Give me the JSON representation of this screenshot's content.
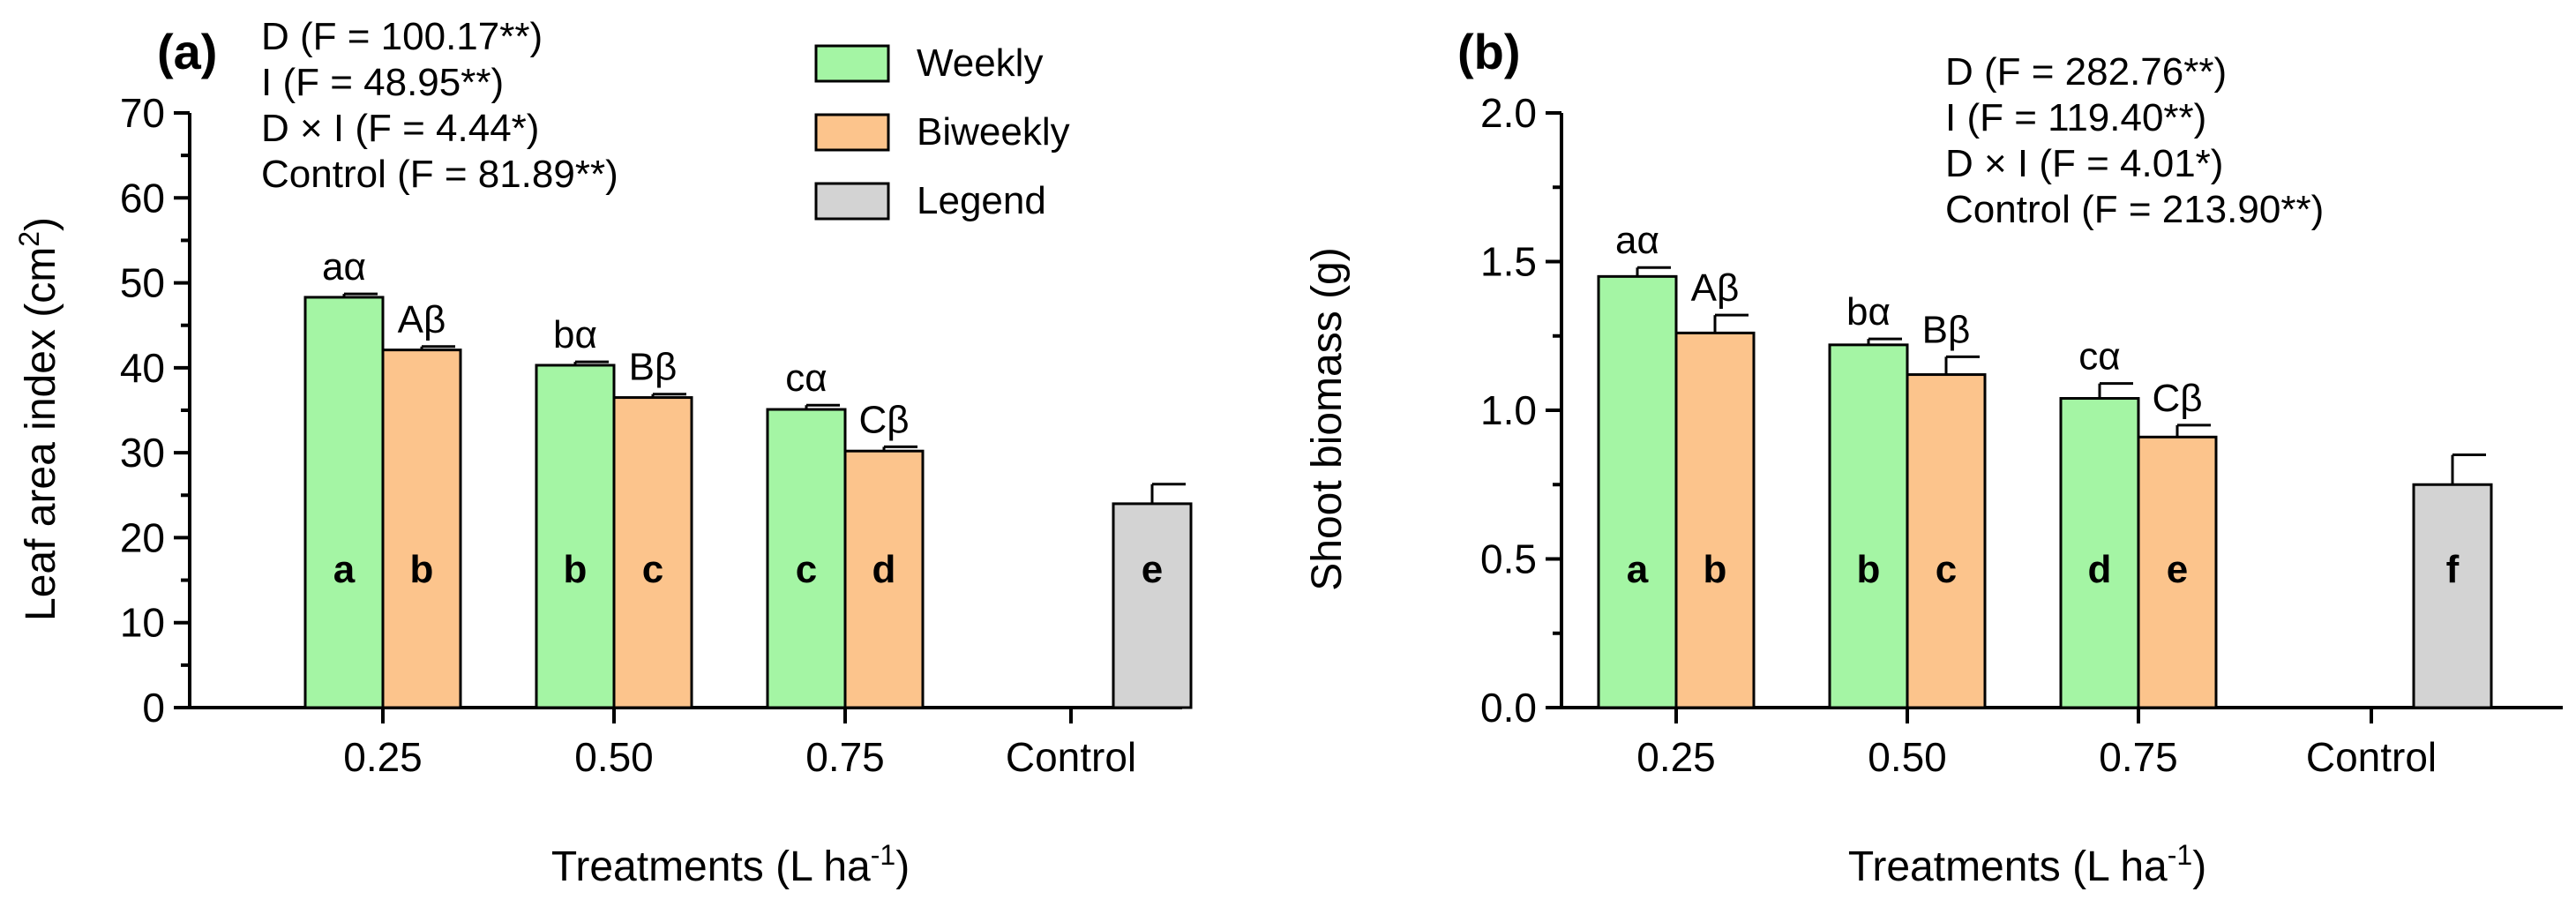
{
  "chart_data": [
    {
      "type": "bar",
      "panel": "(a)",
      "ylabel": "Leaf area index (cm",
      "ylabel_sup": "2",
      "ylabel_end": ")",
      "xlabel": "Treatments (L ha",
      "xlabel_sup": "-1",
      "xlabel_end": ")",
      "ylim": [
        0,
        70
      ],
      "yticks": [
        0,
        10,
        20,
        30,
        40,
        50,
        60,
        70
      ],
      "categories": [
        "0.25",
        "0.50",
        "0.75",
        "Control"
      ],
      "series": [
        {
          "name": "Weekly",
          "color": "#a4f5a4",
          "values": [
            48.3,
            40.3,
            35.1,
            null
          ],
          "errors": [
            0.4,
            0.4,
            0.5,
            null
          ],
          "top_letters": [
            "aα",
            "bα",
            "cα",
            ""
          ],
          "in_letters": [
            "a",
            "b",
            "c",
            ""
          ]
        },
        {
          "name": "Biweekly",
          "color": "#fcc48c",
          "values": [
            42.1,
            36.5,
            30.2,
            null
          ],
          "errors": [
            0.4,
            0.4,
            0.5,
            null
          ],
          "top_letters": [
            "Aβ",
            "Bβ",
            "Cβ",
            ""
          ],
          "in_letters": [
            "b",
            "c",
            "d",
            ""
          ]
        },
        {
          "name": "Legend",
          "color": "#d3d3d3",
          "values": [
            null,
            null,
            null,
            24.0
          ],
          "errors": [
            null,
            null,
            null,
            2.3
          ],
          "top_letters": [
            "",
            "",
            "",
            ""
          ],
          "in_letters": [
            "",
            "",
            "",
            "e"
          ]
        }
      ],
      "stats": [
        "D (F = 100.17**)",
        "I (F = 48.95**)",
        "D × I (F = 4.44*)",
        "Control (F = 81.89**)"
      ],
      "legend": [
        "Weekly",
        "Biweekly",
        "Legend"
      ],
      "legend_position": "top-center"
    },
    {
      "type": "bar",
      "panel": "(b)",
      "ylabel": "Shoot biomass (g)",
      "xlabel": "Treatments (L ha",
      "xlabel_sup": "-1",
      "xlabel_end": ")",
      "ylim": [
        0,
        2.0
      ],
      "yticks": [
        "0.0",
        "0.5",
        "1.0",
        "1.5",
        "2.0"
      ],
      "categories": [
        "0.25",
        "0.50",
        "0.75",
        "Control"
      ],
      "series": [
        {
          "name": "Weekly",
          "color": "#a4f5a4",
          "values": [
            1.45,
            1.22,
            1.04,
            null
          ],
          "errors": [
            0.03,
            0.02,
            0.05,
            null
          ],
          "top_letters": [
            "aα",
            "bα",
            "cα",
            ""
          ],
          "in_letters": [
            "a",
            "b",
            "d",
            ""
          ]
        },
        {
          "name": "Biweekly",
          "color": "#fcc48c",
          "values": [
            1.26,
            1.12,
            0.91,
            null
          ],
          "errors": [
            0.06,
            0.06,
            0.04,
            null
          ],
          "top_letters": [
            "Aβ",
            "Bβ",
            "Cβ",
            ""
          ],
          "in_letters": [
            "b",
            "c",
            "e",
            ""
          ]
        },
        {
          "name": "Legend",
          "color": "#d3d3d3",
          "values": [
            null,
            null,
            null,
            0.75
          ],
          "errors": [
            null,
            null,
            null,
            0.1
          ],
          "top_letters": [
            "",
            "",
            "",
            ""
          ],
          "in_letters": [
            "",
            "",
            "",
            "f"
          ]
        }
      ],
      "stats": [
        "D (F = 282.76**)",
        "I (F = 119.40**)",
        "D × I (F = 4.01*)",
        "Control (F = 213.90**)"
      ]
    }
  ]
}
